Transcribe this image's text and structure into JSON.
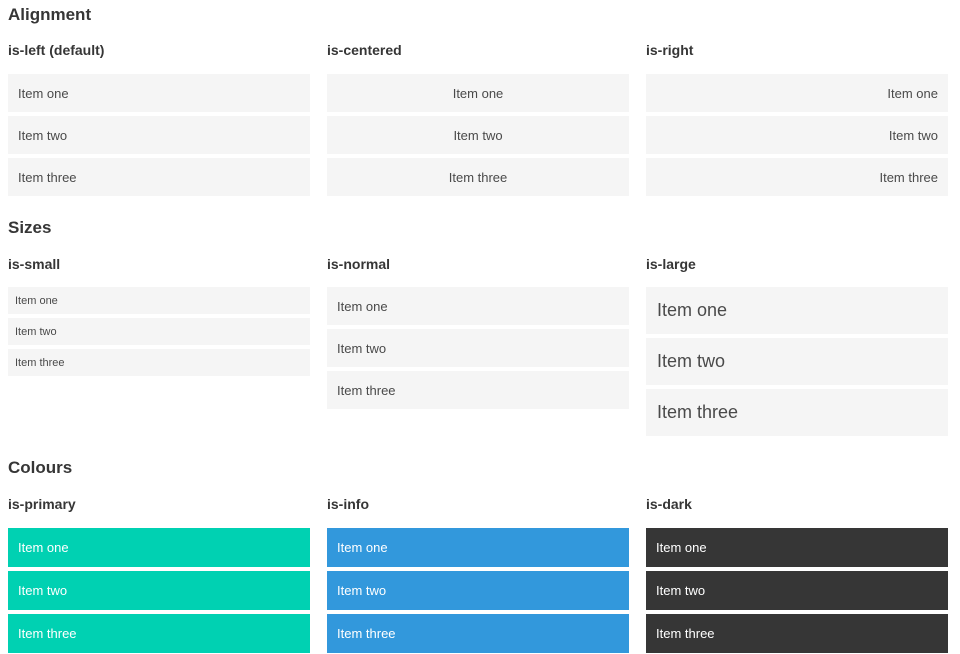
{
  "sections": [
    {
      "title": "Alignment",
      "columns": [
        {
          "heading": "is-left (default)",
          "items": [
            "Item one",
            "Item two",
            "Item three"
          ]
        },
        {
          "heading": "is-centered",
          "items": [
            "Item one",
            "Item two",
            "Item three"
          ]
        },
        {
          "heading": "is-right",
          "items": [
            "Item one",
            "Item two",
            "Item three"
          ]
        }
      ]
    },
    {
      "title": "Sizes",
      "columns": [
        {
          "heading": "is-small",
          "items": [
            "Item one",
            "Item two",
            "Item three"
          ]
        },
        {
          "heading": "is-normal",
          "items": [
            "Item one",
            "Item two",
            "Item three"
          ]
        },
        {
          "heading": "is-large",
          "items": [
            "Item one",
            "Item two",
            "Item three"
          ]
        }
      ]
    },
    {
      "title": "Colours",
      "columns": [
        {
          "heading": "is-primary",
          "items": [
            "Item one",
            "Item two",
            "Item three"
          ]
        },
        {
          "heading": "is-info",
          "items": [
            "Item one",
            "Item two",
            "Item three"
          ]
        },
        {
          "heading": "is-dark",
          "items": [
            "Item one",
            "Item two",
            "Item three"
          ]
        }
      ]
    }
  ],
  "colors": {
    "primary": "#00d1b2",
    "info": "#3298dc",
    "dark": "#363636",
    "item_background": "#f5f5f5",
    "item_text": "#4a4a4a",
    "heading_text": "#363636",
    "colored_item_text": "#ffffff"
  }
}
